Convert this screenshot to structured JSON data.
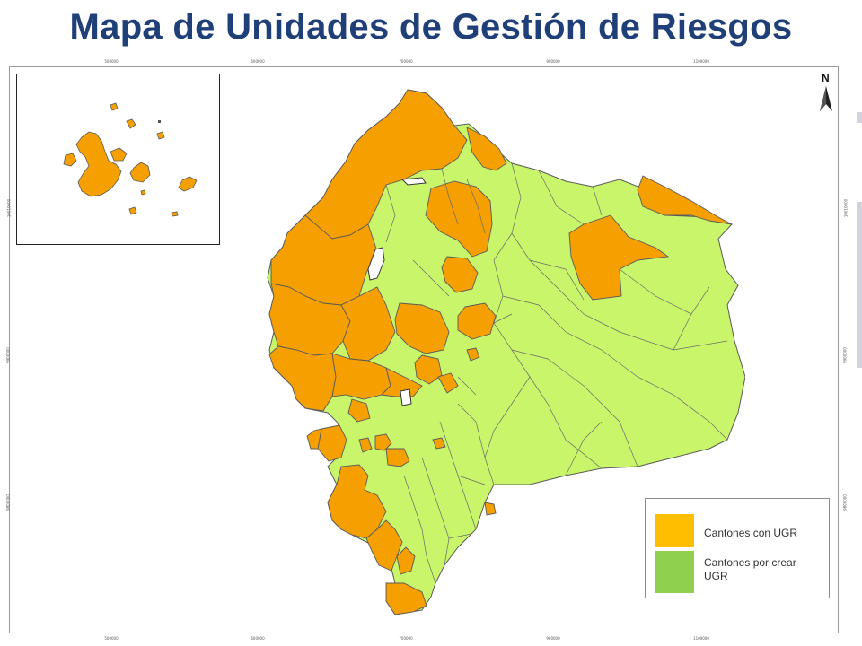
{
  "title": "Mapa de Unidades de Gestión de Riesgos",
  "colors": {
    "with_ugr": "#f5a000",
    "to_create": "#c9f56a",
    "border": "#5a5a5a",
    "title": "#1f3f78",
    "legend_with_ugr": "#ffbf00",
    "legend_to_create": "#8fd14f"
  },
  "axes": {
    "top_ticks": [
      "500000",
      "600000",
      "700000",
      "900000",
      "1100000"
    ],
    "bottom_ticks": [
      "500000",
      "600000",
      "700000",
      "900000",
      "1100000"
    ],
    "left_ticks": [
      "10010000",
      "9900000",
      "9800000"
    ],
    "right_ticks": [
      "10010000",
      "9900000",
      "9800000"
    ]
  },
  "north_arrow": {
    "icon": "north-arrow-icon",
    "label": "N"
  },
  "legend": {
    "items": [
      {
        "label": "Cantones con UGR",
        "color": "#ffbf00"
      },
      {
        "label": "Cantones por crear UGR",
        "color": "#8fd14f"
      }
    ]
  }
}
